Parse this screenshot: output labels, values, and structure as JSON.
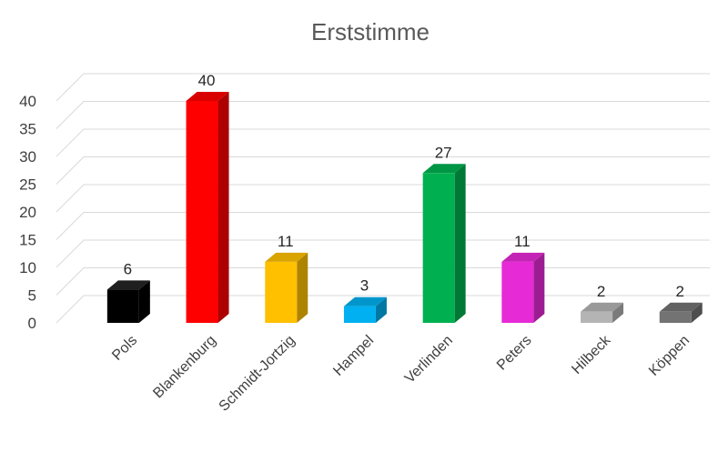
{
  "chart_data": {
    "type": "bar",
    "title": "Erststimme",
    "xlabel": "",
    "ylabel": "",
    "ylim": [
      0,
      40
    ],
    "yticks": [
      0,
      5,
      10,
      15,
      20,
      25,
      30,
      35,
      40
    ],
    "grid": true,
    "style": "3d-columns",
    "categories": [
      "Pols",
      "Blankenburg",
      "Schmidt-Jortzig",
      "Hampel",
      "Verlinden",
      "Peters",
      "Hilbeck",
      "Köppen"
    ],
    "values": [
      6,
      40,
      11,
      3,
      27,
      11,
      2,
      2
    ],
    "colors": [
      "#000000",
      "#ff0000",
      "#ffc000",
      "#00b0f0",
      "#00b050",
      "#e62ad6",
      "#b4b4b4",
      "#737373"
    ]
  }
}
